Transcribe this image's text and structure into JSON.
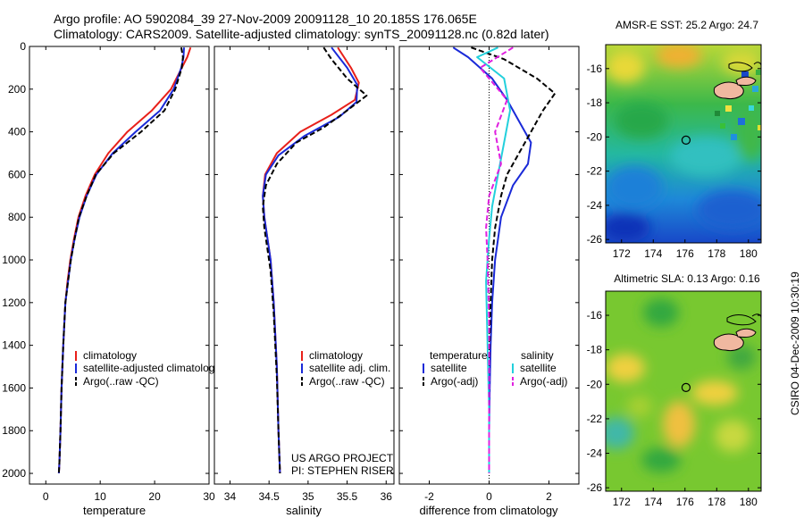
{
  "header": {
    "line1": "Argo profile: AO 5902084_39 27-Nov-2009 20091128_10 20.185S 176.065E",
    "line2": "Climatology: CARS2009. Satellite-adjusted climatology: synTS_20091128.nc (0.82d later)"
  },
  "side_label": "CSIRO 04-Dec-2009 10:30:19",
  "colors": {
    "climatology": "#e8201a",
    "satellite": "#1a2ad8",
    "argo": "#000000",
    "sal_sat": "#22d0dc",
    "sal_argo": "#e020e0",
    "land": "#f0b8a0"
  },
  "chart_data": [
    {
      "id": "temperature",
      "type": "line",
      "xlabel": "temperature",
      "ylabel": "",
      "xlim": [
        -3,
        30
      ],
      "ylim": [
        2050,
        0
      ],
      "xticks": [
        0,
        10,
        20,
        30
      ],
      "xtick_labels": [
        "0",
        "10",
        "20",
        "30"
      ],
      "yticks": [
        0,
        200,
        400,
        600,
        800,
        1000,
        1200,
        1400,
        1600,
        1800,
        2000
      ],
      "ytick_labels": [
        "0",
        "200",
        "400",
        "600",
        "800",
        "1000",
        "1200",
        "1400",
        "1600",
        "1800",
        "2000"
      ],
      "legend": [
        "climatology",
        "satellite-adjusted climatology",
        "Argo(..raw -QC)"
      ],
      "series": [
        {
          "name": "climatology",
          "color_key": "climatology",
          "dash": false,
          "x": [
            26.6,
            26.0,
            25.0,
            23.0,
            19.5,
            15.0,
            11.5,
            9.0,
            7.3,
            6.0,
            5.2,
            4.5,
            4.0,
            3.6,
            3.2,
            2.9,
            2.7,
            2.5,
            2.4
          ],
          "y": [
            5,
            50,
            100,
            200,
            300,
            400,
            500,
            600,
            700,
            800,
            900,
            1000,
            1100,
            1200,
            1400,
            1600,
            1800,
            1950,
            2000
          ]
        },
        {
          "name": "satellite-adjusted climatology",
          "color_key": "satellite",
          "dash": false,
          "x": [
            25.4,
            25.3,
            24.9,
            23.5,
            21.0,
            16.5,
            12.3,
            9.3,
            7.5,
            6.2,
            5.3,
            4.6,
            4.1,
            3.6,
            3.2,
            2.9,
            2.7,
            2.5,
            2.4
          ],
          "y": [
            5,
            50,
            100,
            200,
            300,
            400,
            500,
            600,
            700,
            800,
            900,
            1000,
            1100,
            1200,
            1400,
            1600,
            1800,
            1950,
            2000
          ]
        },
        {
          "name": "Argo(..raw -QC)",
          "color_key": "argo",
          "dash": true,
          "x": [
            24.9,
            25.2,
            25.0,
            23.8,
            21.8,
            17.5,
            12.5,
            9.2,
            7.5,
            6.1,
            5.3,
            4.6,
            4.1,
            3.6,
            3.2,
            2.9,
            2.7,
            2.5,
            2.4
          ],
          "y": [
            5,
            50,
            100,
            200,
            300,
            400,
            500,
            600,
            700,
            800,
            900,
            1000,
            1100,
            1200,
            1400,
            1600,
            1800,
            1950,
            2000
          ]
        }
      ]
    },
    {
      "id": "salinity",
      "type": "line",
      "xlabel": "salinity",
      "ylabel": "",
      "xlim": [
        33.8,
        36.1
      ],
      "ylim": [
        2050,
        0
      ],
      "xticks": [
        34,
        34.5,
        35,
        35.5,
        36
      ],
      "xtick_labels": [
        "34",
        "34.5",
        "35",
        "35.5",
        "36"
      ],
      "yticks": [
        0,
        200,
        400,
        600,
        800,
        1000,
        1200,
        1400,
        1600,
        1800,
        2000
      ],
      "legend": [
        "climatology",
        "satellite adj. clim.",
        "Argo(..raw -QC)"
      ],
      "annotations": [
        "US ARGO PROJECT",
        "PI: STEPHEN RISER"
      ],
      "series": [
        {
          "name": "climatology",
          "color_key": "climatology",
          "dash": false,
          "x": [
            35.38,
            35.55,
            35.65,
            35.6,
            35.3,
            34.9,
            34.6,
            34.45,
            34.42,
            34.44,
            34.48,
            34.52,
            34.56,
            34.6,
            34.62,
            34.64
          ],
          "y": [
            5,
            100,
            170,
            250,
            320,
            400,
            500,
            600,
            700,
            800,
            900,
            1000,
            1200,
            1500,
            1800,
            2000
          ]
        },
        {
          "name": "satellite adj. clim.",
          "color_key": "satellite",
          "dash": false,
          "x": [
            35.3,
            35.5,
            35.63,
            35.62,
            35.4,
            34.95,
            34.62,
            34.46,
            34.42,
            34.44,
            34.48,
            34.52,
            34.56,
            34.6,
            34.62,
            34.64
          ],
          "y": [
            5,
            100,
            180,
            260,
            330,
            420,
            510,
            600,
            700,
            800,
            900,
            1000,
            1200,
            1500,
            1800,
            2000
          ]
        },
        {
          "name": "Argo(..raw -QC)",
          "color_key": "argo",
          "dash": true,
          "x": [
            35.2,
            35.3,
            35.5,
            35.75,
            35.5,
            35.2,
            34.85,
            34.6,
            34.46,
            34.42,
            34.44,
            34.48,
            34.52,
            34.56,
            34.6,
            34.62,
            34.64
          ],
          "y": [
            5,
            60,
            150,
            230,
            300,
            380,
            450,
            550,
            650,
            750,
            850,
            950,
            1050,
            1250,
            1550,
            1800,
            2000
          ]
        }
      ]
    },
    {
      "id": "difference",
      "type": "line",
      "xlabel": "difference from climatology",
      "ylabel": "",
      "xlim": [
        -3,
        3
      ],
      "ylim": [
        2050,
        0
      ],
      "xticks": [
        -2,
        0,
        2
      ],
      "xtick_labels": [
        "-2",
        "0",
        "2"
      ],
      "yticks": [
        0,
        200,
        400,
        600,
        800,
        1000,
        1200,
        1400,
        1600,
        1800,
        2000
      ],
      "legend_left_title": "temperature",
      "legend_right_title": "salinity",
      "legend_left": [
        "satellite",
        "Argo(-adj)"
      ],
      "legend_right": [
        "satellite",
        "Argo(-adj)"
      ],
      "series": [
        {
          "name": "temperature satellite",
          "color_key": "satellite",
          "dash": false,
          "x": [
            -1.2,
            -0.7,
            0.1,
            0.6,
            1.0,
            1.4,
            1.3,
            0.8,
            0.4,
            0.2,
            0.1,
            0.05,
            0.02,
            0.0,
            0.0
          ],
          "y": [
            5,
            50,
            150,
            250,
            350,
            450,
            550,
            650,
            800,
            1000,
            1200,
            1400,
            1600,
            1800,
            2000
          ]
        },
        {
          "name": "temperature Argo(-adj)",
          "color_key": "argo",
          "dash": true,
          "x": [
            -0.6,
            0.5,
            1.6,
            2.2,
            1.8,
            1.4,
            1.0,
            0.6,
            0.4,
            0.2,
            0.1,
            0.05,
            0.0,
            0.0
          ],
          "y": [
            5,
            60,
            150,
            220,
            300,
            400,
            500,
            600,
            700,
            850,
            1000,
            1200,
            1500,
            2000
          ]
        },
        {
          "name": "salinity satellite",
          "color_key": "sal_sat",
          "dash": false,
          "x": [
            0.3,
            -0.4,
            0.5,
            0.7,
            0.5,
            0.3,
            0.1,
            0.0,
            -0.1,
            -0.05,
            0.0,
            0.0
          ],
          "y": [
            5,
            50,
            150,
            300,
            450,
            600,
            750,
            900,
            1100,
            1400,
            1700,
            2000
          ]
        },
        {
          "name": "salinity Argo(-adj)",
          "color_key": "sal_argo",
          "dash": true,
          "x": [
            0.8,
            -0.3,
            0.6,
            0.2,
            0.4,
            0.0,
            -0.1,
            -0.05,
            0.0,
            0.0
          ],
          "y": [
            5,
            100,
            250,
            400,
            550,
            700,
            850,
            1000,
            1300,
            2000
          ]
        }
      ]
    },
    {
      "id": "sst_map",
      "type": "heatmap",
      "title": "AMSR-E SST: 25.2 Argo: 24.7",
      "xlim": [
        171,
        180.8
      ],
      "ylim": [
        -26.2,
        -14.6
      ],
      "xticks": [
        172,
        174,
        176,
        178,
        180
      ],
      "xtick_labels": [
        "172",
        "174",
        "176",
        "178",
        "180"
      ],
      "yticks": [
        -16,
        -18,
        -20,
        -22,
        -24,
        -26
      ],
      "ytick_labels": [
        "-16",
        "-18",
        "-20",
        "-22",
        "-24",
        "-26"
      ],
      "marker": {
        "lon": 176.065,
        "lat": -20.185
      }
    },
    {
      "id": "sla_map",
      "type": "heatmap",
      "title": "Altimetric SLA: 0.13 Argo: 0.16",
      "xlim": [
        171,
        180.8
      ],
      "ylim": [
        -26.2,
        -14.6
      ],
      "xticks": [
        172,
        174,
        176,
        178,
        180
      ],
      "xtick_labels": [
        "172",
        "174",
        "176",
        "178",
        "180"
      ],
      "yticks": [
        -16,
        -18,
        -20,
        -22,
        -24,
        -26
      ],
      "ytick_labels": [
        "-16",
        "-18",
        "-20",
        "-22",
        "-24",
        "-26"
      ],
      "marker": {
        "lon": 176.065,
        "lat": -20.185
      }
    }
  ]
}
